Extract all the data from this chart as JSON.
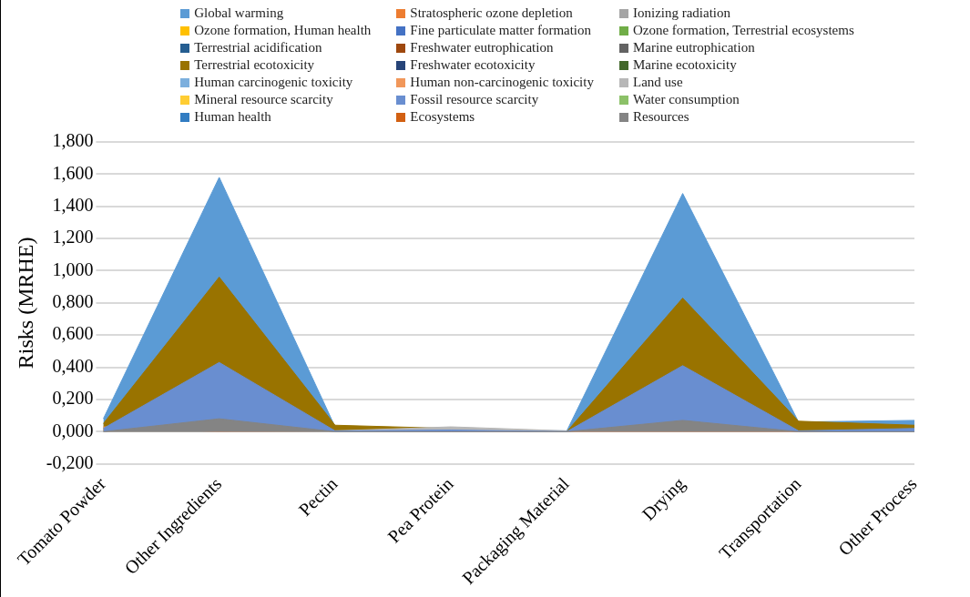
{
  "chart_data": {
    "type": "area",
    "ylabel": "Risks (MRHE)",
    "categories": [
      "Tomato Powder",
      "Other Ingredients",
      "Pectin",
      "Pea Protein",
      "Packaging Material",
      "Drying",
      "Transportation",
      "Other Process"
    ],
    "ylim": [
      -0.2,
      1.8
    ],
    "yticks": [
      {
        "value": -0.2,
        "label": "-0,200"
      },
      {
        "value": 0,
        "label": "0,000"
      },
      {
        "value": 0.2,
        "label": "0,200"
      },
      {
        "value": 0.4,
        "label": "0,400"
      },
      {
        "value": 0.6,
        "label": "0,600"
      },
      {
        "value": 0.8,
        "label": "0,800"
      },
      {
        "value": 1,
        "label": "1,000"
      },
      {
        "value": 1.2,
        "label": "1,200"
      },
      {
        "value": 1.4,
        "label": "1,400"
      },
      {
        "value": 1.6,
        "label": "1,600"
      },
      {
        "value": 1.8,
        "label": "1,800"
      }
    ],
    "grid": "y",
    "legend": "top",
    "series": [
      {
        "name": "Global warming",
        "color": "#5b9bd5",
        "values": [
          0.08,
          1.58,
          0.03,
          0.01,
          0.005,
          1.48,
          0.06,
          0.07
        ]
      },
      {
        "name": "Stratospheric ozone depletion",
        "color": "#ed7d31",
        "values": [
          null,
          null,
          null,
          null,
          null,
          null,
          null,
          null
        ]
      },
      {
        "name": "Ionizing radiation",
        "color": "#a5a5a5",
        "values": [
          null,
          null,
          null,
          null,
          null,
          null,
          null,
          null
        ]
      },
      {
        "name": "Ozone formation, Human health",
        "color": "#ffc000",
        "values": [
          null,
          null,
          null,
          null,
          null,
          null,
          null,
          null
        ]
      },
      {
        "name": "Fine particulate matter formation",
        "color": "#4472c4",
        "values": [
          null,
          null,
          null,
          null,
          null,
          null,
          null,
          null
        ]
      },
      {
        "name": "Ozone formation, Terrestrial ecosystems",
        "color": "#70ad47",
        "values": [
          null,
          null,
          null,
          null,
          null,
          null,
          null,
          null
        ]
      },
      {
        "name": "Terrestrial acidification",
        "color": "#255e91",
        "values": [
          null,
          null,
          null,
          null,
          null,
          null,
          null,
          null
        ]
      },
      {
        "name": "Freshwater eutrophication",
        "color": "#9e480e",
        "values": [
          null,
          null,
          null,
          null,
          null,
          null,
          null,
          null
        ]
      },
      {
        "name": "Marine eutrophication",
        "color": "#636363",
        "values": [
          null,
          null,
          null,
          null,
          null,
          null,
          null,
          null
        ]
      },
      {
        "name": "Terrestrial ecotoxicity",
        "color": "#997300",
        "values": [
          0.05,
          0.96,
          0.04,
          0.02,
          0,
          0.83,
          0.065,
          0.04
        ]
      },
      {
        "name": "Freshwater ecotoxicity",
        "color": "#264478",
        "values": [
          null,
          null,
          null,
          null,
          null,
          null,
          null,
          null
        ]
      },
      {
        "name": "Marine ecotoxicity",
        "color": "#43682b",
        "values": [
          null,
          null,
          null,
          null,
          null,
          null,
          null,
          null
        ]
      },
      {
        "name": "Human carcinogenic toxicity",
        "color": "#7cafdd",
        "values": [
          null,
          null,
          null,
          null,
          null,
          null,
          null,
          null
        ]
      },
      {
        "name": "Human non-carcinogenic toxicity",
        "color": "#f1975a",
        "values": [
          0.03,
          0,
          0.005,
          0,
          0,
          0,
          0,
          0.01
        ]
      },
      {
        "name": "Land use",
        "color": "#b7b7b7",
        "values": [
          null,
          null,
          0.005,
          0.03,
          0.005,
          null,
          null,
          null
        ]
      },
      {
        "name": "Mineral resource scarcity",
        "color": "#ffcd33",
        "values": [
          null,
          null,
          null,
          null,
          null,
          null,
          null,
          null
        ]
      },
      {
        "name": "Fossil resource scarcity",
        "color": "#698ed0",
        "values": [
          0.02,
          0.43,
          0.005,
          0.01,
          0,
          0.41,
          0.005,
          0.02
        ]
      },
      {
        "name": "Water consumption",
        "color": "#8cc168",
        "values": [
          null,
          null,
          null,
          null,
          null,
          null,
          null,
          null
        ]
      },
      {
        "name": "Human health",
        "color": "#327dc2",
        "values": [
          null,
          null,
          null,
          null,
          null,
          null,
          null,
          null
        ]
      },
      {
        "name": "Ecosystems",
        "color": "#d26012",
        "values": [
          null,
          null,
          null,
          null,
          null,
          null,
          null,
          null
        ]
      },
      {
        "name": "Resources",
        "color": "#848484",
        "values": [
          0,
          0.08,
          0,
          0,
          0,
          0.07,
          0,
          0
        ]
      }
    ]
  }
}
